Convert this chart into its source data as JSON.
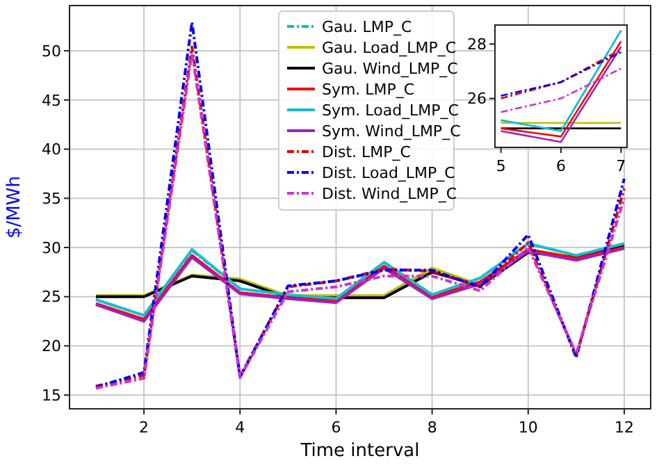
{
  "chart_data": [
    {
      "type": "line",
      "xlabel": "Time interval",
      "ylabel": "$/MWh",
      "x": [
        1,
        2,
        3,
        4,
        5,
        6,
        7,
        8,
        9,
        10,
        11,
        12
      ],
      "xlim": [
        0.45,
        12.55
      ],
      "ylim": [
        13.6,
        54.6
      ],
      "xticks": [
        2,
        4,
        6,
        8,
        10,
        12
      ],
      "yticks": [
        15,
        20,
        25,
        30,
        35,
        40,
        45,
        50
      ],
      "grid": true,
      "legend": "top",
      "marker": "none",
      "series": [
        {
          "name": "Gau. LMP_C",
          "color": "#00bfbf",
          "line_style": "dashdot",
          "values": [
            24.7,
            23.1,
            29.7,
            25.8,
            25.2,
            24.8,
            28.5,
            25.2,
            26.9,
            30.4,
            29.2,
            30.4
          ]
        },
        {
          "name": "Gau. Load_LMP_C",
          "color": "#bfbf00",
          "line_style": "solid",
          "values": [
            25.1,
            25.1,
            27.2,
            26.8,
            25.1,
            25.1,
            25.1,
            27.9,
            26.2,
            29.8,
            29.0,
            30.2
          ]
        },
        {
          "name": "Gau. Wind_LMP_C",
          "color": "#000000",
          "line_style": "solid",
          "values": [
            25.0,
            25.0,
            27.1,
            26.6,
            24.9,
            24.9,
            24.9,
            27.5,
            26.1,
            29.5,
            29.0,
            30.2
          ]
        },
        {
          "name": "Sym. LMP_C",
          "color": "#ff0000",
          "line_style": "solid",
          "values": [
            24.3,
            22.7,
            29.2,
            25.4,
            24.9,
            24.6,
            28.1,
            25.0,
            26.5,
            29.8,
            28.9,
            30.0
          ]
        },
        {
          "name": "Sym. Load_LMP_C",
          "color": "#17becf",
          "line_style": "solid",
          "values": [
            24.7,
            23.1,
            29.8,
            25.8,
            25.2,
            24.8,
            28.5,
            25.2,
            26.9,
            30.4,
            29.2,
            30.4
          ]
        },
        {
          "name": "Sym. Wind_LMP_C",
          "color": "#a020c0",
          "line_style": "solid",
          "values": [
            24.2,
            22.5,
            29.0,
            25.3,
            24.8,
            24.4,
            27.9,
            24.8,
            26.3,
            29.6,
            28.7,
            29.9
          ]
        },
        {
          "name": "Dist. LMP_C",
          "color": "#e00000",
          "line_style": "dashdot",
          "values": [
            15.9,
            17.0,
            50.4,
            16.9,
            26.0,
            26.6,
            27.8,
            27.6,
            26.0,
            30.5,
            19.0,
            36.0
          ]
        },
        {
          "name": "Dist. Load_LMP_C",
          "color": "#0000ff",
          "line_style": "dashdot",
          "values": [
            15.8,
            17.3,
            52.9,
            16.8,
            26.1,
            26.6,
            27.7,
            27.7,
            26.0,
            31.3,
            18.8,
            37.0
          ]
        },
        {
          "name": "Dist. Wind_LMP_C",
          "color": "#cc33cc",
          "line_style": "dashdot",
          "values": [
            15.7,
            16.7,
            49.8,
            16.8,
            25.5,
            26.0,
            27.1,
            27.1,
            25.6,
            30.0,
            19.2,
            35.0
          ]
        }
      ]
    },
    {
      "type": "line",
      "x": [
        5,
        6,
        7
      ],
      "xlim": [
        4.9,
        7.1
      ],
      "ylim": [
        24.2,
        28.7
      ],
      "xticks": [
        5,
        6,
        7
      ],
      "yticks": [
        26,
        28
      ],
      "grid": false,
      "marker": "none",
      "series": [
        {
          "color": "#00bfbf",
          "line_style": "dashdot",
          "values": [
            25.2,
            24.8,
            28.5
          ]
        },
        {
          "color": "#bfbf00",
          "line_style": "solid",
          "values": [
            25.1,
            25.1,
            25.1
          ]
        },
        {
          "color": "#000000",
          "line_style": "solid",
          "values": [
            24.9,
            24.9,
            24.9
          ]
        },
        {
          "color": "#ff0000",
          "line_style": "solid",
          "values": [
            24.9,
            24.6,
            28.1
          ]
        },
        {
          "color": "#17becf",
          "line_style": "solid",
          "values": [
            25.2,
            24.8,
            28.5
          ]
        },
        {
          "color": "#a020c0",
          "line_style": "solid",
          "values": [
            24.8,
            24.4,
            27.9
          ]
        },
        {
          "color": "#e00000",
          "line_style": "dashdot",
          "values": [
            26.0,
            26.6,
            27.8
          ]
        },
        {
          "color": "#0000ff",
          "line_style": "dashdot",
          "values": [
            26.1,
            26.6,
            27.7
          ]
        },
        {
          "color": "#cc33cc",
          "line_style": "dashdot",
          "values": [
            25.5,
            26.0,
            27.1
          ]
        }
      ]
    }
  ]
}
